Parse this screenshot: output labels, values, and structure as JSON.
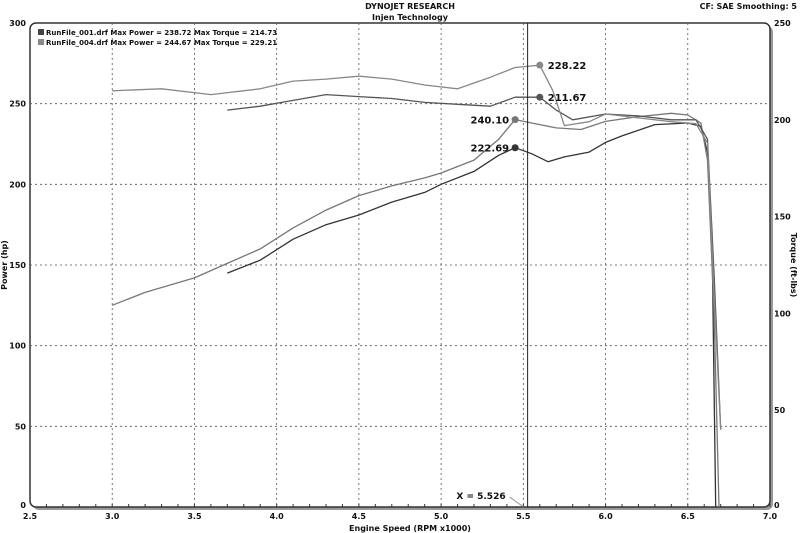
{
  "header": {
    "title": "DYNOJET RESEARCH",
    "subtitle": "Injen Technology",
    "settings": "CF: SAE  Smoothing: 5"
  },
  "chart_data": {
    "type": "line",
    "xlabel": "Engine Speed (RPM x1000)",
    "ylabel": "Power (hp)",
    "y2label": "Torque (ft-lbs)",
    "xlim": [
      2.5,
      7.0
    ],
    "ylim": [
      0,
      300
    ],
    "y2lim": [
      0,
      250
    ],
    "xticks": [
      "2.5",
      "3.0",
      "3.5",
      "4.0",
      "4.5",
      "5.0",
      "5.5",
      "6.0",
      "6.5",
      "7.0"
    ],
    "yticks": [
      "0",
      "50",
      "100",
      "150",
      "200",
      "250",
      "300"
    ],
    "y2ticks": [
      "0",
      "50",
      "100",
      "150",
      "200",
      "250"
    ],
    "grid": true,
    "legend": [
      {
        "text": "RunFile_001.drf Max Power = 238.72    Max Torque = 214.73",
        "color": "#444444"
      },
      {
        "text": "RunFile_004.drf Max Power = 244.67    Max Torque = 229.21",
        "color": "#888888"
      }
    ],
    "cursor": {
      "x": 5.526,
      "label": "X = 5.526"
    },
    "series": [
      {
        "run": "001",
        "kind": "power",
        "axis": "left",
        "color": "#333333",
        "x": [
          3.7,
          3.9,
          4.1,
          4.3,
          4.5,
          4.7,
          4.9,
          5.0,
          5.2,
          5.35,
          5.45,
          5.55,
          5.65,
          5.75,
          5.9,
          6.0,
          6.1,
          6.3,
          6.5,
          6.58,
          6.62,
          6.65,
          6.67
        ],
        "y": [
          145,
          153,
          166,
          175,
          181,
          189,
          195,
          200,
          208,
          218,
          222.69,
          219,
          214,
          217,
          220,
          226,
          230,
          237,
          238,
          236,
          220,
          150,
          0
        ]
      },
      {
        "run": "004",
        "kind": "power",
        "axis": "left",
        "color": "#777777",
        "x": [
          3.0,
          3.2,
          3.5,
          3.7,
          3.9,
          4.1,
          4.3,
          4.5,
          4.7,
          4.9,
          5.0,
          5.2,
          5.35,
          5.45,
          5.55,
          5.7,
          5.85,
          6.0,
          6.2,
          6.4,
          6.5,
          6.58,
          6.62,
          6.66,
          6.69
        ],
        "y": [
          125,
          133,
          142,
          151,
          160,
          173,
          184,
          193,
          199,
          204,
          207,
          215,
          228,
          240.1,
          238,
          235,
          234,
          239,
          242,
          244,
          243,
          238,
          215,
          120,
          0
        ]
      },
      {
        "run": "001",
        "kind": "torque",
        "axis": "right",
        "color": "#555555",
        "x": [
          3.7,
          3.9,
          4.1,
          4.3,
          4.5,
          4.7,
          4.9,
          5.1,
          5.3,
          5.45,
          5.6,
          5.7,
          5.8,
          6.0,
          6.2,
          6.4,
          6.55,
          6.62,
          6.66,
          6.7
        ],
        "y": [
          205,
          207,
          210,
          213,
          212,
          211,
          209,
          208,
          207,
          211.67,
          211.67,
          205,
          200,
          203,
          202,
          200,
          200,
          190,
          120,
          40
        ]
      },
      {
        "run": "004",
        "kind": "torque",
        "axis": "right",
        "color": "#888888",
        "x": [
          3.0,
          3.3,
          3.6,
          3.9,
          4.1,
          4.3,
          4.5,
          4.7,
          4.9,
          5.1,
          5.3,
          5.45,
          5.6,
          5.68,
          5.75,
          5.9,
          6.0,
          6.2,
          6.4,
          6.55,
          6.62,
          6.66,
          6.7
        ],
        "y": [
          215,
          216,
          213,
          216,
          220,
          221,
          222.5,
          221,
          218,
          216,
          222,
          227,
          228.22,
          215,
          197,
          199,
          203,
          201,
          199,
          198,
          188,
          110,
          40
        ]
      }
    ],
    "point_labels": [
      {
        "x": 5.6,
        "y": 228.22,
        "axis": "right",
        "text": "228.22",
        "color": "#888888",
        "side": "right"
      },
      {
        "x": 5.6,
        "y": 211.67,
        "axis": "right",
        "text": "211.67",
        "color": "#555555",
        "side": "right"
      },
      {
        "x": 5.45,
        "y": 240.1,
        "axis": "left",
        "text": "240.10",
        "color": "#777777",
        "side": "left"
      },
      {
        "x": 5.45,
        "y": 222.69,
        "axis": "left",
        "text": "222.69",
        "color": "#333333",
        "side": "left"
      }
    ]
  }
}
